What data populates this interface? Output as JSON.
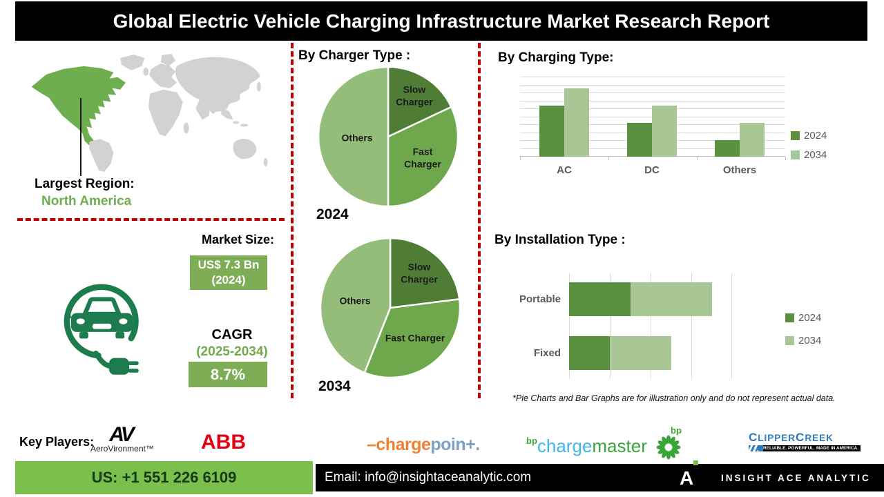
{
  "title": "Global Electric Vehicle Charging Infrastructure Market Research Report",
  "colors": {
    "accent_red": "#c00000",
    "na_green": "#6fae4e",
    "text_green": "#74a94e",
    "box_green": "#7dad55",
    "icon_green": "#1c7c4d",
    "phone_green": "#7dbf4d",
    "abb_red": "#e60012",
    "chargepoint_orange": "#f08032",
    "chargepoint_blue": "#7ba0c6",
    "bp_blue": "#3fb6e8",
    "bp_green": "#3aa63a",
    "clipper_blue": "#2e79b8"
  },
  "map": {
    "largest_region_label": "Largest Region:",
    "largest_region_value": "North America"
  },
  "market": {
    "heading": "Market Size:",
    "size_line1": "US$ 7.3 Bn",
    "size_line2": "(2024)",
    "cagr_label": "CAGR",
    "cagr_period": "(2025-2034)",
    "cagr_value": "8.7%"
  },
  "chart_data": [
    {
      "type": "pie",
      "title": "By Charger Type :",
      "year": "2024",
      "slices": [
        {
          "label": "Slow Charger",
          "value": 18,
          "color": "#507d36"
        },
        {
          "label": "Fast Charger",
          "value": 32,
          "color": "#6fa84c"
        },
        {
          "label": "Others",
          "value": 50,
          "color": "#95bd7a"
        }
      ]
    },
    {
      "type": "pie",
      "title": "By Charger Type :",
      "year": "2034",
      "slices": [
        {
          "label": "Slow Charger",
          "value": 23,
          "color": "#507d36"
        },
        {
          "label": "Fast Charger",
          "value": 33,
          "color": "#6fa84c"
        },
        {
          "label": "Others",
          "value": 44,
          "color": "#95bd7a"
        }
      ]
    },
    {
      "type": "bar",
      "title": "By Charging Type:",
      "categories": [
        "AC",
        "DC",
        "Others"
      ],
      "ylim": [
        0,
        10
      ],
      "grid": true,
      "legend_position": "right",
      "series": [
        {
          "name": "2024",
          "color": "#5a9140",
          "values": [
            6.4,
            4.3,
            2.1
          ]
        },
        {
          "name": "2034",
          "color": "#a8c795",
          "values": [
            8.6,
            6.4,
            4.3
          ]
        }
      ]
    },
    {
      "type": "bar-horizontal-stacked",
      "title": "By Installation Type :",
      "categories": [
        "Portable",
        "Fixed"
      ],
      "xlim": [
        0,
        4
      ],
      "grid": true,
      "legend_position": "right",
      "series": [
        {
          "name": "2024",
          "color": "#5a9140",
          "values": [
            1.5,
            1.0
          ]
        },
        {
          "name": "2034",
          "color": "#a8c795",
          "values": [
            2.0,
            1.5
          ]
        }
      ]
    }
  ],
  "disclaimer": "*Pie Charts and Bar Graphs are for illustration only and do not represent actual data.",
  "key_players": {
    "label": "Key Players:",
    "aerovironment_mark": "AV",
    "aerovironment_name": "AeroVironment™",
    "abb": "ABB",
    "chargepoint_part1": "–charge",
    "chargepoint_part2": "poin+.",
    "bp_sup": "bp",
    "bp_charge": "charge",
    "bp_master": "master",
    "bp_logo": "bp",
    "clipper_c1": "C",
    "clipper_p1": "LIPPER",
    "clipper_c2": "C",
    "clipper_p2": "REEK",
    "clipper_tagline": "RELIABLE. POWERFUL. MADE IN AMERICA."
  },
  "footer": {
    "phone": "US: +1 551 226 6109",
    "email": "Email: info@insightaceanalytic.com",
    "brand_mark": "A",
    "brand_name": "INSIGHT ACE ANALYTIC"
  }
}
